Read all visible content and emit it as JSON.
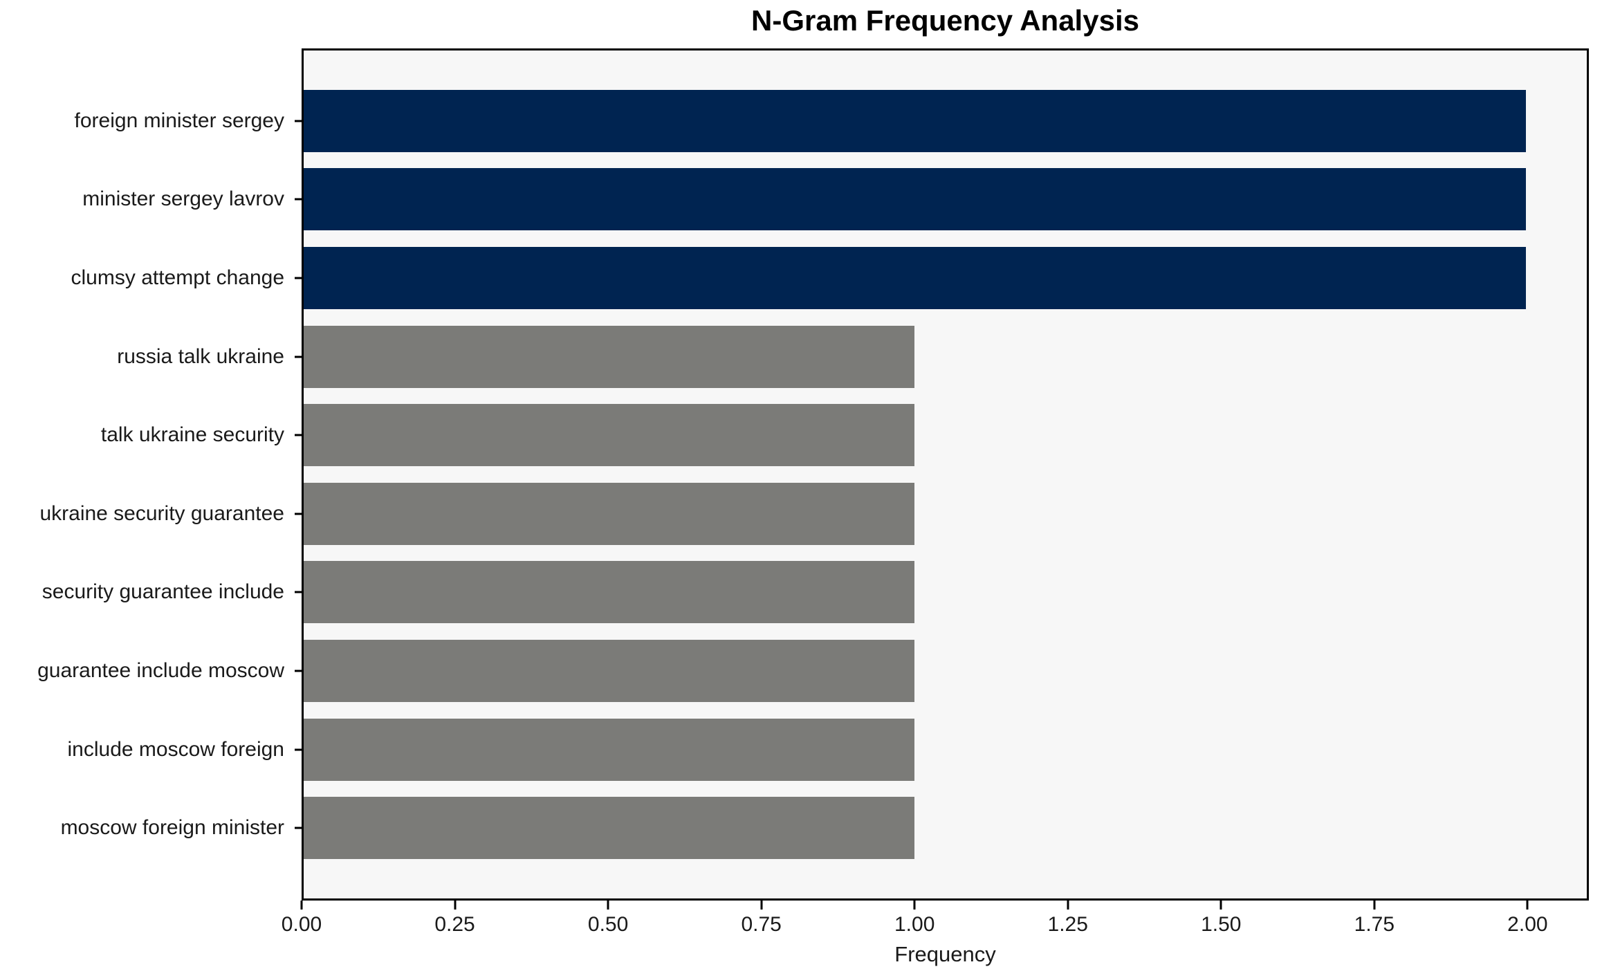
{
  "chart_data": {
    "type": "bar",
    "orientation": "horizontal",
    "title": "N-Gram Frequency Analysis",
    "xlabel": "Frequency",
    "ylabel": "",
    "categories": [
      "foreign minister sergey",
      "minister sergey lavrov",
      "clumsy attempt change",
      "russia talk ukraine",
      "talk ukraine security",
      "ukraine security guarantee",
      "security guarantee include",
      "guarantee include moscow",
      "include moscow foreign",
      "moscow foreign minister"
    ],
    "values": [
      2,
      2,
      2,
      1,
      1,
      1,
      1,
      1,
      1,
      1
    ],
    "bar_colors": [
      "#002451",
      "#002451",
      "#002451",
      "#7b7b78",
      "#7b7b78",
      "#7b7b78",
      "#7b7b78",
      "#7b7b78",
      "#7b7b78",
      "#7b7b78"
    ],
    "xlim": [
      0,
      2.1
    ],
    "xticks": [
      0,
      0.25,
      0.5,
      0.75,
      1.0,
      1.25,
      1.5,
      1.75,
      2.0
    ],
    "xtick_labels": [
      "0.00",
      "0.25",
      "0.50",
      "0.75",
      "1.00",
      "1.25",
      "1.50",
      "1.75",
      "2.00"
    ],
    "grid": false,
    "legend": null,
    "plot_background": "#f7f7f7",
    "figure_background": "#ffffff",
    "highlight_color": "#002451",
    "default_color": "#7b7b78",
    "spine_color": "#000000"
  }
}
